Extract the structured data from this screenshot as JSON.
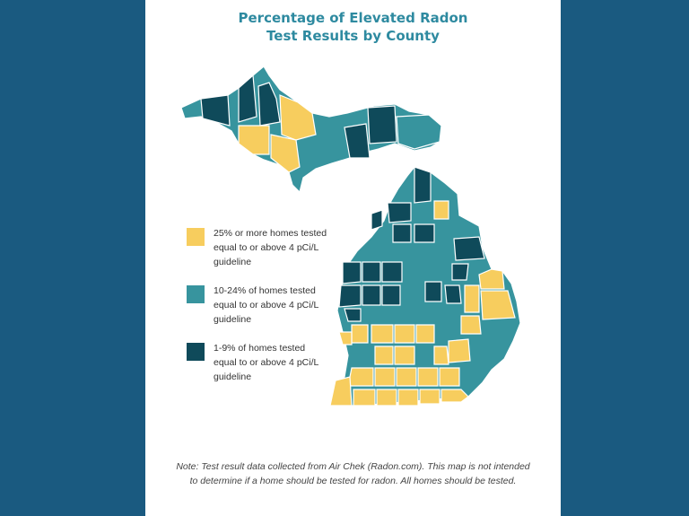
{
  "title": {
    "line1": "Percentage of Elevated Radon",
    "line2": "Test Results by County"
  },
  "colors": {
    "high": "#f7cd5e",
    "mid": "#37949e",
    "low": "#0f4a5a",
    "background": "#1a5a80"
  },
  "legend": [
    {
      "color": "#f7cd5e",
      "label": "25% or more homes tested equal to or above 4 pCi/L guideline"
    },
    {
      "color": "#37949e",
      "label": "10-24% of homes tested equal to or above 4 pCi/L guideline"
    },
    {
      "color": "#0f4a5a",
      "label": "1-9% of homes tested equal to or above 4 pCi/L guideline"
    }
  ],
  "note": "Note: Test result data collected from Air Chek (Radon.com). This map is not intended to determine if a home should be tested for radon. All homes should be tested."
}
